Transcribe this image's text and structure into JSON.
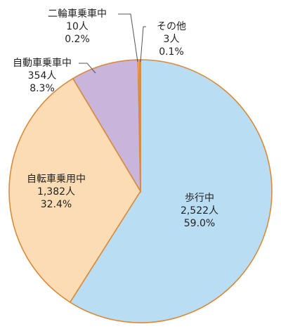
{
  "chart_data": {
    "type": "pie",
    "title": "",
    "start": "top, clockwise",
    "slices": [
      {
        "name": "歩行中",
        "count": "2,522人",
        "percent": "59.0%",
        "value": 59.0,
        "color": "#b9def3"
      },
      {
        "name": "自転車乗用中",
        "count": "1,382人",
        "percent": "32.4%",
        "value": 32.4,
        "color": "#fbdcb4"
      },
      {
        "name": "自動車乗車中",
        "count": "354人",
        "percent": "8.3%",
        "value": 8.3,
        "color": "#c9b4dc"
      },
      {
        "name": "二輪車乗車中",
        "count": "10人",
        "percent": "0.2%",
        "value": 0.2,
        "color": "#f4c89a"
      },
      {
        "name": "その他",
        "count": "3人",
        "percent": "0.1%",
        "value": 0.1,
        "color": "#f7d9b8"
      }
    ]
  }
}
